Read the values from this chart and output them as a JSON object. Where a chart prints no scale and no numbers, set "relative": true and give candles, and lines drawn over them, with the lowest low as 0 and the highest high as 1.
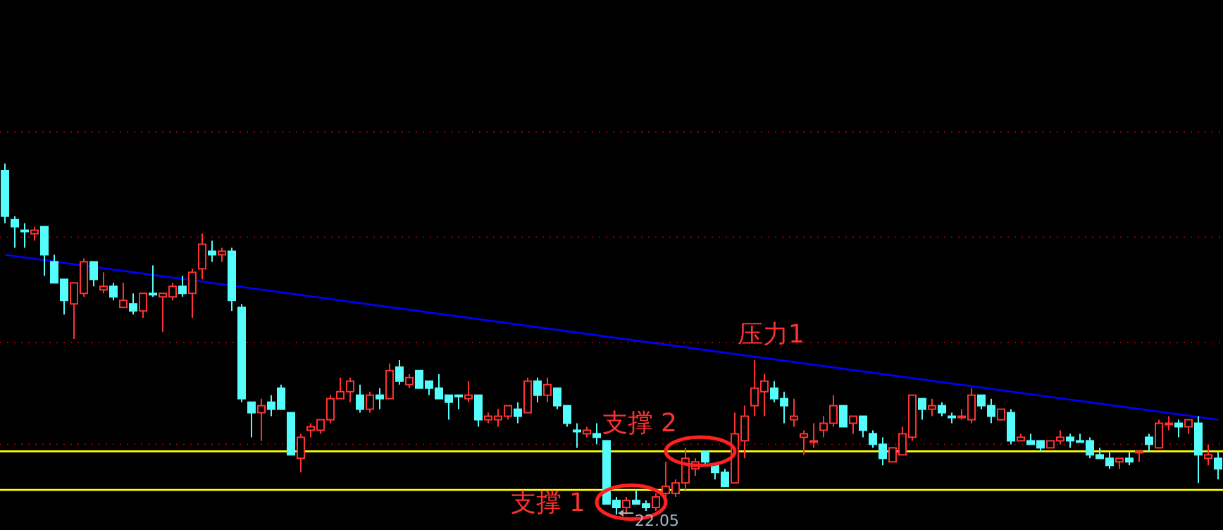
{
  "chart_data": {
    "type": "candlestick",
    "relative": true,
    "categories": [
      null,
      null,
      null,
      null,
      null,
      null,
      null,
      null,
      null,
      null,
      null,
      null,
      null,
      null,
      null,
      null,
      null,
      null,
      null,
      null,
      null,
      null,
      null,
      null,
      null,
      null,
      null,
      null,
      null,
      null,
      null,
      null,
      null,
      null,
      null,
      null,
      null,
      null,
      null,
      null,
      null,
      null,
      null,
      null,
      null,
      null,
      null,
      null,
      null,
      null,
      null,
      null,
      null,
      null,
      null,
      null,
      null,
      null,
      null,
      null,
      null,
      null,
      null,
      null,
      null,
      null,
      null,
      null,
      null,
      null,
      null,
      null,
      null,
      null,
      null,
      null,
      null,
      null,
      null,
      null,
      null,
      null,
      null,
      null,
      null,
      null,
      null,
      null,
      null,
      null,
      null,
      null,
      null,
      null,
      null,
      null,
      null,
      null,
      null,
      null,
      null,
      null,
      null,
      null,
      null,
      null,
      null,
      null,
      null,
      null,
      null,
      null,
      null,
      null,
      null,
      null,
      null,
      null,
      null,
      null,
      null,
      null,
      null,
      null
    ],
    "ohlc": [
      [
        0.98,
        1.0,
        0.83,
        0.85
      ],
      [
        0.84,
        0.85,
        0.76,
        0.82
      ],
      [
        0.81,
        0.83,
        0.76,
        0.81
      ],
      [
        0.8,
        0.82,
        0.78,
        0.81
      ],
      [
        0.82,
        0.82,
        0.68,
        0.74
      ],
      [
        0.72,
        0.74,
        0.66,
        0.66
      ],
      [
        0.67,
        0.67,
        0.57,
        0.61
      ],
      [
        0.6,
        0.66,
        0.5,
        0.66
      ],
      [
        0.63,
        0.73,
        0.62,
        0.72
      ],
      [
        0.72,
        0.72,
        0.65,
        0.67
      ],
      [
        0.64,
        0.69,
        0.63,
        0.65
      ],
      [
        0.65,
        0.66,
        0.61,
        0.62
      ],
      [
        0.59,
        0.66,
        0.59,
        0.61
      ],
      [
        0.6,
        0.63,
        0.57,
        0.58
      ],
      [
        0.58,
        0.63,
        0.56,
        0.63
      ],
      [
        0.63,
        0.71,
        0.62,
        0.63
      ],
      [
        0.62,
        0.63,
        0.52,
        0.63
      ],
      [
        0.62,
        0.66,
        0.61,
        0.65
      ],
      [
        0.65,
        0.68,
        0.62,
        0.63
      ],
      [
        0.63,
        0.7,
        0.56,
        0.69
      ],
      [
        0.7,
        0.8,
        0.67,
        0.77
      ],
      [
        0.75,
        0.78,
        0.72,
        0.74
      ],
      [
        0.74,
        0.76,
        0.72,
        0.75
      ],
      [
        0.75,
        0.76,
        0.58,
        0.61
      ],
      [
        0.59,
        0.6,
        0.32,
        0.33
      ],
      [
        0.32,
        0.32,
        0.22,
        0.29
      ],
      [
        0.29,
        0.33,
        0.21,
        0.31
      ],
      [
        0.32,
        0.34,
        0.28,
        0.3
      ],
      [
        0.36,
        0.37,
        0.3,
        0.3
      ],
      [
        0.29,
        0.29,
        0.17,
        0.17
      ],
      [
        0.16,
        0.23,
        0.12,
        0.22
      ],
      [
        0.24,
        0.26,
        0.22,
        0.25
      ],
      [
        0.24,
        0.27,
        0.23,
        0.27
      ],
      [
        0.27,
        0.34,
        0.26,
        0.33
      ],
      [
        0.33,
        0.39,
        0.33,
        0.35
      ],
      [
        0.35,
        0.39,
        0.32,
        0.38
      ],
      [
        0.34,
        0.37,
        0.29,
        0.3
      ],
      [
        0.3,
        0.35,
        0.29,
        0.34
      ],
      [
        0.34,
        0.36,
        0.3,
        0.33
      ],
      [
        0.33,
        0.43,
        0.33,
        0.41
      ],
      [
        0.42,
        0.44,
        0.37,
        0.38
      ],
      [
        0.37,
        0.4,
        0.36,
        0.39
      ],
      [
        0.41,
        0.41,
        0.36,
        0.36
      ],
      [
        0.38,
        0.38,
        0.34,
        0.36
      ],
      [
        0.36,
        0.4,
        0.33,
        0.33
      ],
      [
        0.34,
        0.34,
        0.27,
        0.32
      ],
      [
        0.34,
        0.34,
        0.3,
        0.34
      ],
      [
        0.33,
        0.38,
        0.32,
        0.34
      ],
      [
        0.34,
        0.34,
        0.25,
        0.27
      ],
      [
        0.27,
        0.29,
        0.26,
        0.28
      ],
      [
        0.27,
        0.3,
        0.25,
        0.28
      ],
      [
        0.28,
        0.31,
        0.27,
        0.31
      ],
      [
        0.3,
        0.32,
        0.26,
        0.28
      ],
      [
        0.29,
        0.39,
        0.29,
        0.38
      ],
      [
        0.38,
        0.39,
        0.32,
        0.34
      ],
      [
        0.34,
        0.39,
        0.32,
        0.37
      ],
      [
        0.36,
        0.36,
        0.3,
        0.31
      ],
      [
        0.31,
        0.31,
        0.25,
        0.26
      ],
      [
        0.24,
        0.26,
        0.19,
        0.24
      ],
      [
        0.23,
        0.25,
        0.22,
        0.24
      ],
      [
        0.23,
        0.26,
        0.2,
        0.22
      ],
      [
        0.21,
        0.21,
        0.03,
        0.03
      ],
      [
        0.04,
        0.05,
        0.0,
        0.02
      ],
      [
        0.02,
        0.05,
        0.0,
        0.04
      ],
      [
        0.04,
        0.07,
        0.03,
        0.03
      ],
      [
        0.03,
        0.04,
        0.01,
        0.02
      ],
      [
        0.02,
        0.06,
        0.01,
        0.05
      ],
      [
        0.06,
        0.15,
        0.04,
        0.08
      ],
      [
        0.06,
        0.1,
        0.05,
        0.09
      ],
      [
        0.09,
        0.19,
        0.07,
        0.16
      ],
      [
        0.13,
        0.16,
        0.11,
        0.15
      ],
      [
        0.18,
        0.18,
        0.14,
        0.15
      ],
      [
        0.14,
        0.14,
        0.1,
        0.12
      ],
      [
        0.12,
        0.13,
        0.08,
        0.08
      ],
      [
        0.09,
        0.29,
        0.09,
        0.23
      ],
      [
        0.21,
        0.31,
        0.16,
        0.28
      ],
      [
        0.31,
        0.44,
        0.28,
        0.36
      ],
      [
        0.35,
        0.4,
        0.28,
        0.38
      ],
      [
        0.36,
        0.38,
        0.32,
        0.33
      ],
      [
        0.33,
        0.35,
        0.26,
        0.31
      ],
      [
        0.27,
        0.33,
        0.25,
        0.28
      ],
      [
        0.22,
        0.24,
        0.17,
        0.23
      ],
      [
        0.21,
        0.26,
        0.19,
        0.21
      ],
      [
        0.24,
        0.28,
        0.22,
        0.26
      ],
      [
        0.26,
        0.34,
        0.25,
        0.31
      ],
      [
        0.31,
        0.31,
        0.25,
        0.25
      ],
      [
        0.26,
        0.28,
        0.23,
        0.28
      ],
      [
        0.28,
        0.28,
        0.22,
        0.24
      ],
      [
        0.23,
        0.24,
        0.19,
        0.2
      ],
      [
        0.2,
        0.22,
        0.14,
        0.16
      ],
      [
        0.15,
        0.19,
        0.15,
        0.19
      ],
      [
        0.17,
        0.25,
        0.17,
        0.23
      ],
      [
        0.22,
        0.34,
        0.21,
        0.34
      ],
      [
        0.33,
        0.33,
        0.27,
        0.3
      ],
      [
        0.3,
        0.33,
        0.28,
        0.31
      ],
      [
        0.31,
        0.32,
        0.28,
        0.29
      ],
      [
        0.28,
        0.29,
        0.26,
        0.28
      ],
      [
        0.28,
        0.3,
        0.27,
        0.28
      ],
      [
        0.27,
        0.36,
        0.26,
        0.34
      ],
      [
        0.34,
        0.34,
        0.3,
        0.31
      ],
      [
        0.31,
        0.33,
        0.26,
        0.28
      ],
      [
        0.27,
        0.3,
        0.27,
        0.3
      ],
      [
        0.29,
        0.3,
        0.2,
        0.21
      ],
      [
        0.21,
        0.23,
        0.21,
        0.22
      ],
      [
        0.21,
        0.23,
        0.2,
        0.2
      ],
      [
        0.21,
        0.21,
        0.18,
        0.19
      ],
      [
        0.19,
        0.21,
        0.19,
        0.21
      ],
      [
        0.21,
        0.24,
        0.2,
        0.22
      ],
      [
        0.22,
        0.23,
        0.19,
        0.21
      ],
      [
        0.21,
        0.23,
        0.21,
        0.21
      ],
      [
        0.21,
        0.22,
        0.16,
        0.17
      ],
      [
        0.17,
        0.19,
        0.16,
        0.16
      ],
      [
        0.16,
        0.18,
        0.13,
        0.14
      ],
      [
        0.15,
        0.16,
        0.13,
        0.16
      ],
      [
        0.16,
        0.18,
        0.14,
        0.15
      ],
      [
        0.18,
        0.18,
        0.15,
        0.18
      ],
      [
        0.22,
        0.23,
        0.18,
        0.2
      ],
      [
        0.19,
        0.27,
        0.19,
        0.26
      ],
      [
        0.26,
        0.28,
        0.24,
        0.26
      ],
      [
        0.26,
        0.27,
        0.22,
        0.25
      ],
      [
        0.25,
        0.27,
        0.23,
        0.27
      ],
      [
        0.26,
        0.28,
        0.09,
        0.17
      ],
      [
        0.16,
        0.2,
        0.14,
        0.17
      ],
      [
        0.16,
        0.18,
        0.1,
        0.13
      ]
    ],
    "colors": [
      "#54fcfc",
      "#54fcfc",
      "#54fcfc",
      "#ff3232",
      "#54fcfc",
      "#54fcfc",
      "#54fcfc",
      "#ff3232",
      "#ff3232",
      "#54fcfc",
      "#ff3232",
      "#54fcfc",
      "#ff3232",
      "#54fcfc",
      "#ff3232",
      "#54fcfc",
      "#ff3232",
      "#ff3232",
      "#54fcfc",
      "#ff3232",
      "#ff3232",
      "#54fcfc",
      "#ff3232",
      "#54fcfc",
      "#54fcfc",
      "#54fcfc",
      "#ff3232",
      "#54fcfc",
      "#54fcfc",
      "#54fcfc",
      "#ff3232",
      "#ff3232",
      "#ff3232",
      "#ff3232",
      "#ff3232",
      "#ff3232",
      "#54fcfc",
      "#ff3232",
      "#54fcfc",
      "#ff3232",
      "#54fcfc",
      "#ff3232",
      "#54fcfc",
      "#54fcfc",
      "#54fcfc",
      "#54fcfc",
      "#54fcfc",
      "#ff3232",
      "#54fcfc",
      "#ff3232",
      "#ff3232",
      "#ff3232",
      "#54fcfc",
      "#ff3232",
      "#54fcfc",
      "#ff3232",
      "#54fcfc",
      "#54fcfc",
      "#54fcfc",
      "#ff3232",
      "#54fcfc",
      "#54fcfc",
      "#54fcfc",
      "#ff3232",
      "#54fcfc",
      "#54fcfc",
      "#ff3232",
      "#ff3232",
      "#ff3232",
      "#ff3232",
      "#ff3232",
      "#54fcfc",
      "#54fcfc",
      "#54fcfc",
      "#ff3232",
      "#ff3232",
      "#ff3232",
      "#ff3232",
      "#54fcfc",
      "#54fcfc",
      "#ff3232",
      "#ff3232",
      "#ff3232",
      "#ff3232",
      "#ff3232",
      "#54fcfc",
      "#ff3232",
      "#54fcfc",
      "#54fcfc",
      "#54fcfc",
      "#ff3232",
      "#ff3232",
      "#ff3232",
      "#54fcfc",
      "#ff3232",
      "#54fcfc",
      "#54fcfc",
      "#ff3232",
      "#ff3232",
      "#54fcfc",
      "#54fcfc",
      "#ff3232",
      "#54fcfc",
      "#ff3232",
      "#54fcfc",
      "#54fcfc",
      "#ff3232",
      "#ff3232",
      "#54fcfc",
      "#54fcfc",
      "#54fcfc",
      "#54fcfc",
      "#54fcfc",
      "#ff3232",
      "#54fcfc",
      "#ff3232",
      "#54fcfc",
      "#ff3232",
      "#ff3232",
      "#54fcfc",
      "#ff3232",
      "#54fcfc",
      "#ff3232",
      "#54fcfc"
    ],
    "series": [
      {
        "type": "line",
        "name": "压力1",
        "color": "#0000ff",
        "values": [
          0.74,
          null,
          null,
          null,
          null,
          null,
          null,
          null,
          null,
          null,
          null,
          null,
          null,
          null,
          null,
          null,
          null,
          null,
          null,
          null,
          null,
          null,
          null,
          null,
          null,
          null,
          null,
          null,
          null,
          null,
          null,
          null,
          null,
          null,
          null,
          null,
          null,
          null,
          null,
          null,
          null,
          null,
          null,
          null,
          null,
          null,
          null,
          null,
          null,
          null,
          null,
          null,
          null,
          null,
          null,
          null,
          null,
          null,
          null,
          null,
          null,
          null,
          null,
          null,
          null,
          null,
          null,
          null,
          null,
          null,
          null,
          null,
          null,
          null,
          null,
          null,
          null,
          null,
          null,
          null,
          null,
          null,
          null,
          null,
          null,
          null,
          null,
          null,
          null,
          null,
          null,
          null,
          null,
          null,
          null,
          null,
          null,
          null,
          null,
          null,
          null,
          null,
          null,
          null,
          null,
          null,
          null,
          null,
          null,
          null,
          null,
          null,
          null,
          null,
          null,
          null,
          null,
          null,
          null,
          null,
          null,
          null,
          null,
          0.27
        ]
      }
    ],
    "ref_lines": [
      {
        "axis": "y",
        "value": 0.18,
        "label": "支撑 2",
        "color": "#ffff00"
      },
      {
        "axis": "y",
        "value": 0.07,
        "label": "支撑 1",
        "color": "#ffff00"
      },
      {
        "axis": "y",
        "value": 0.2,
        "color": "#9a0000",
        "line_style": "dotted"
      },
      {
        "axis": "y",
        "value": 0.49,
        "color": "#9a0000",
        "line_style": "dotted"
      },
      {
        "axis": "y",
        "value": 0.79,
        "color": "#9a0000",
        "line_style": "dotted"
      },
      {
        "axis": "y",
        "value": 1.09,
        "color": "#9a0000",
        "line_style": "dotted"
      }
    ],
    "annotations": [
      "22.05"
    ]
  }
}
